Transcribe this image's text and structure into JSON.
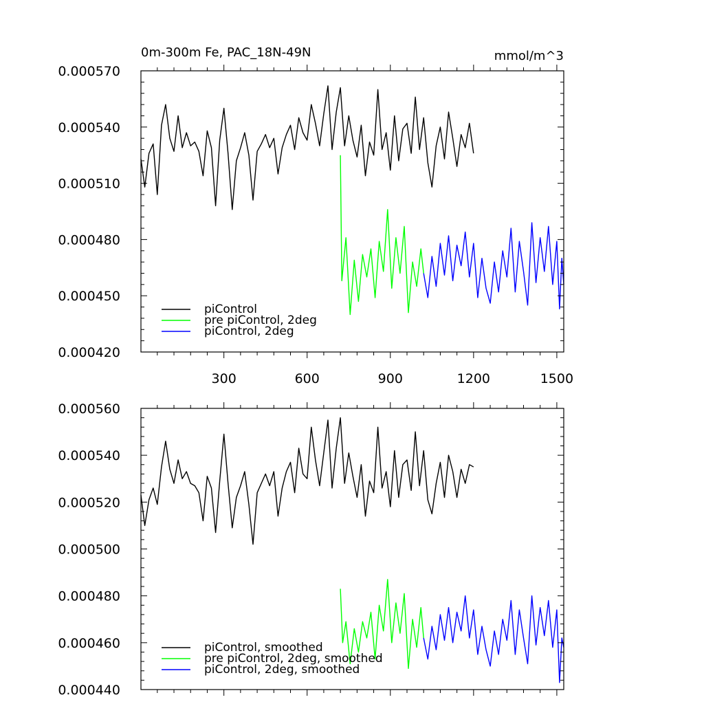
{
  "figure_title": "0m-300m Fe, PAC_18N-49N",
  "units": "mmol/m^3",
  "chart_data": [
    {
      "type": "line",
      "title": "0m-300m Fe, PAC_18N-49N",
      "units": "mmol/m^3",
      "xlim": [
        1,
        1525
      ],
      "ylim": [
        0.00042,
        0.00057
      ],
      "x_ticks": [
        300,
        600,
        900,
        1200,
        1500
      ],
      "x_tick_labels": [
        "300",
        "600",
        "900",
        "1200",
        "1500"
      ],
      "y_ticks": [
        0.00042,
        0.00045,
        0.00048,
        0.00051,
        0.00054,
        0.00057
      ],
      "y_tick_labels": [
        "0.000420",
        "0.000450",
        "0.000480",
        "0.000510",
        "0.000540",
        "0.000570"
      ],
      "legend_position": "bottom-left",
      "series": [
        {
          "name": "piControl",
          "color": "#000000",
          "x": [
            1,
            15,
            30,
            45,
            60,
            75,
            90,
            105,
            120,
            135,
            150,
            165,
            180,
            195,
            210,
            225,
            240,
            255,
            270,
            285,
            300,
            315,
            330,
            345,
            360,
            375,
            390,
            405,
            420,
            435,
            450,
            465,
            480,
            495,
            510,
            525,
            540,
            555,
            570,
            585,
            600,
            615,
            630,
            645,
            660,
            675,
            690,
            705,
            720,
            735,
            750,
            765,
            780,
            795,
            810,
            825,
            840,
            855,
            870,
            885,
            900,
            915,
            930,
            945,
            960,
            975,
            990,
            1005,
            1020,
            1035,
            1050,
            1065,
            1080,
            1095,
            1110,
            1125,
            1140,
            1155,
            1170,
            1185,
            1200
          ],
          "values": [
            0.000523,
            0.000508,
            0.000526,
            0.000531,
            0.000504,
            0.000541,
            0.000552,
            0.000534,
            0.000527,
            0.000546,
            0.000529,
            0.000537,
            0.00053,
            0.000532,
            0.000527,
            0.000514,
            0.000538,
            0.000529,
            0.000498,
            0.000533,
            0.00055,
            0.000526,
            0.000496,
            0.000522,
            0.000529,
            0.000537,
            0.000525,
            0.000501,
            0.000527,
            0.000531,
            0.000536,
            0.000529,
            0.000534,
            0.000515,
            0.000529,
            0.000536,
            0.000541,
            0.000528,
            0.000545,
            0.000537,
            0.000533,
            0.000552,
            0.000542,
            0.00053,
            0.000547,
            0.000562,
            0.000528,
            0.000548,
            0.000561,
            0.00053,
            0.000546,
            0.000533,
            0.000524,
            0.000541,
            0.000514,
            0.000532,
            0.000525,
            0.00056,
            0.000528,
            0.000537,
            0.000517,
            0.000546,
            0.000522,
            0.000539,
            0.000542,
            0.000526,
            0.000556,
            0.000528,
            0.000545,
            0.000521,
            0.000508,
            0.00053,
            0.00054,
            0.000523,
            0.000548,
            0.000534,
            0.000519,
            0.000536,
            0.000529,
            0.000542,
            0.000526
          ]
        },
        {
          "name": "pre piControl, 2deg",
          "color": "#00ff00",
          "x": [
            720,
            725,
            740,
            755,
            770,
            785,
            800,
            815,
            830,
            845,
            860,
            875,
            890,
            905,
            920,
            935,
            950,
            965,
            980,
            995,
            1010,
            1020
          ],
          "values": [
            0.000525,
            0.000458,
            0.000481,
            0.00044,
            0.000469,
            0.000447,
            0.000472,
            0.00046,
            0.000475,
            0.000449,
            0.000479,
            0.000463,
            0.000496,
            0.000454,
            0.000481,
            0.000462,
            0.000487,
            0.000441,
            0.000468,
            0.000455,
            0.000475,
            0.000462
          ]
        },
        {
          "name": "piControl, 2deg",
          "color": "#0000ff",
          "x": [
            1020,
            1035,
            1050,
            1065,
            1080,
            1095,
            1110,
            1125,
            1140,
            1155,
            1170,
            1185,
            1200,
            1215,
            1230,
            1245,
            1260,
            1275,
            1290,
            1305,
            1320,
            1335,
            1350,
            1365,
            1380,
            1395,
            1410,
            1425,
            1440,
            1455,
            1470,
            1485,
            1500,
            1510,
            1518,
            1525
          ],
          "values": [
            0.000462,
            0.000449,
            0.000471,
            0.000455,
            0.000478,
            0.000461,
            0.000482,
            0.000458,
            0.000477,
            0.000466,
            0.000484,
            0.00046,
            0.000478,
            0.000449,
            0.00047,
            0.000454,
            0.000446,
            0.000468,
            0.000452,
            0.000474,
            0.00046,
            0.000486,
            0.000452,
            0.000479,
            0.000463,
            0.000445,
            0.000489,
            0.000457,
            0.000481,
            0.000463,
            0.000487,
            0.000456,
            0.000479,
            0.000443,
            0.00047,
            0.000456
          ]
        }
      ]
    },
    {
      "type": "line",
      "title": "",
      "xlim": [
        1,
        1525
      ],
      "ylim": [
        0.00044,
        0.00056
      ],
      "x_ticks": [
        300,
        600,
        900,
        1200,
        1500
      ],
      "x_tick_labels": [
        "",
        "",
        "",
        "",
        ""
      ],
      "y_ticks": [
        0.00044,
        0.00046,
        0.00048,
        0.0005,
        0.00052,
        0.00054,
        0.00056
      ],
      "y_tick_labels": [
        "0.000440",
        "0.000460",
        "0.000480",
        "0.000500",
        "0.000520",
        "0.000540",
        "0.000560"
      ],
      "legend_position": "bottom-left",
      "series": [
        {
          "name": "piControl, smoothed",
          "color": "#000000",
          "x": [
            1,
            15,
            30,
            45,
            60,
            75,
            90,
            105,
            120,
            135,
            150,
            165,
            180,
            195,
            210,
            225,
            240,
            255,
            270,
            285,
            300,
            315,
            330,
            345,
            360,
            375,
            390,
            405,
            420,
            435,
            450,
            465,
            480,
            495,
            510,
            525,
            540,
            555,
            570,
            585,
            600,
            615,
            630,
            645,
            660,
            675,
            690,
            705,
            720,
            735,
            750,
            765,
            780,
            795,
            810,
            825,
            840,
            855,
            870,
            885,
            900,
            915,
            930,
            945,
            960,
            975,
            990,
            1005,
            1020,
            1035,
            1050,
            1065,
            1080,
            1095,
            1110,
            1125,
            1140,
            1155,
            1170,
            1185,
            1200
          ],
          "values": [
            0.000523,
            0.00051,
            0.000521,
            0.000526,
            0.000519,
            0.000535,
            0.000546,
            0.000534,
            0.000528,
            0.000538,
            0.00053,
            0.000533,
            0.000528,
            0.000527,
            0.000524,
            0.000512,
            0.000531,
            0.000526,
            0.000507,
            0.000529,
            0.000549,
            0.000528,
            0.000509,
            0.000522,
            0.000527,
            0.000533,
            0.000519,
            0.000502,
            0.000524,
            0.000528,
            0.000532,
            0.000527,
            0.000533,
            0.000514,
            0.000526,
            0.000533,
            0.000537,
            0.000524,
            0.000543,
            0.000532,
            0.00053,
            0.000552,
            0.000538,
            0.000527,
            0.000541,
            0.000555,
            0.000526,
            0.000543,
            0.000556,
            0.000528,
            0.000541,
            0.000531,
            0.000522,
            0.000536,
            0.000514,
            0.000529,
            0.000524,
            0.000552,
            0.000526,
            0.000533,
            0.000518,
            0.000542,
            0.000522,
            0.000536,
            0.000538,
            0.000525,
            0.00055,
            0.000527,
            0.000542,
            0.000521,
            0.000515,
            0.000528,
            0.000537,
            0.000522,
            0.00054,
            0.000533,
            0.000522,
            0.000534,
            0.000528,
            0.000536,
            0.000535
          ]
        },
        {
          "name": "pre piControl, 2deg, smoothed",
          "color": "#00ff00",
          "x": [
            720,
            728,
            740,
            755,
            770,
            785,
            800,
            815,
            830,
            845,
            860,
            875,
            890,
            905,
            920,
            935,
            950,
            965,
            980,
            995,
            1010,
            1020
          ],
          "values": [
            0.000483,
            0.00046,
            0.000469,
            0.000451,
            0.000466,
            0.000456,
            0.000469,
            0.000462,
            0.000473,
            0.000453,
            0.000476,
            0.000465,
            0.000487,
            0.00046,
            0.000477,
            0.000464,
            0.000481,
            0.000449,
            0.00047,
            0.000458,
            0.000475,
            0.000462
          ]
        },
        {
          "name": "piControl, 2deg, smoothed",
          "color": "#0000ff",
          "x": [
            1020,
            1035,
            1050,
            1065,
            1080,
            1095,
            1110,
            1125,
            1140,
            1155,
            1170,
            1185,
            1200,
            1215,
            1230,
            1245,
            1260,
            1275,
            1290,
            1305,
            1320,
            1335,
            1350,
            1365,
            1380,
            1395,
            1410,
            1425,
            1440,
            1455,
            1470,
            1485,
            1500,
            1510,
            1518,
            1525
          ],
          "values": [
            0.000462,
            0.000453,
            0.000467,
            0.000457,
            0.000472,
            0.000461,
            0.000475,
            0.00046,
            0.000473,
            0.000465,
            0.00048,
            0.000462,
            0.000474,
            0.000455,
            0.000467,
            0.000457,
            0.00045,
            0.000465,
            0.000455,
            0.00047,
            0.000461,
            0.000478,
            0.000455,
            0.000474,
            0.000462,
            0.000451,
            0.00048,
            0.000459,
            0.000475,
            0.000463,
            0.000478,
            0.000458,
            0.000474,
            0.000443,
            0.000462,
            0.000458
          ]
        }
      ]
    }
  ]
}
